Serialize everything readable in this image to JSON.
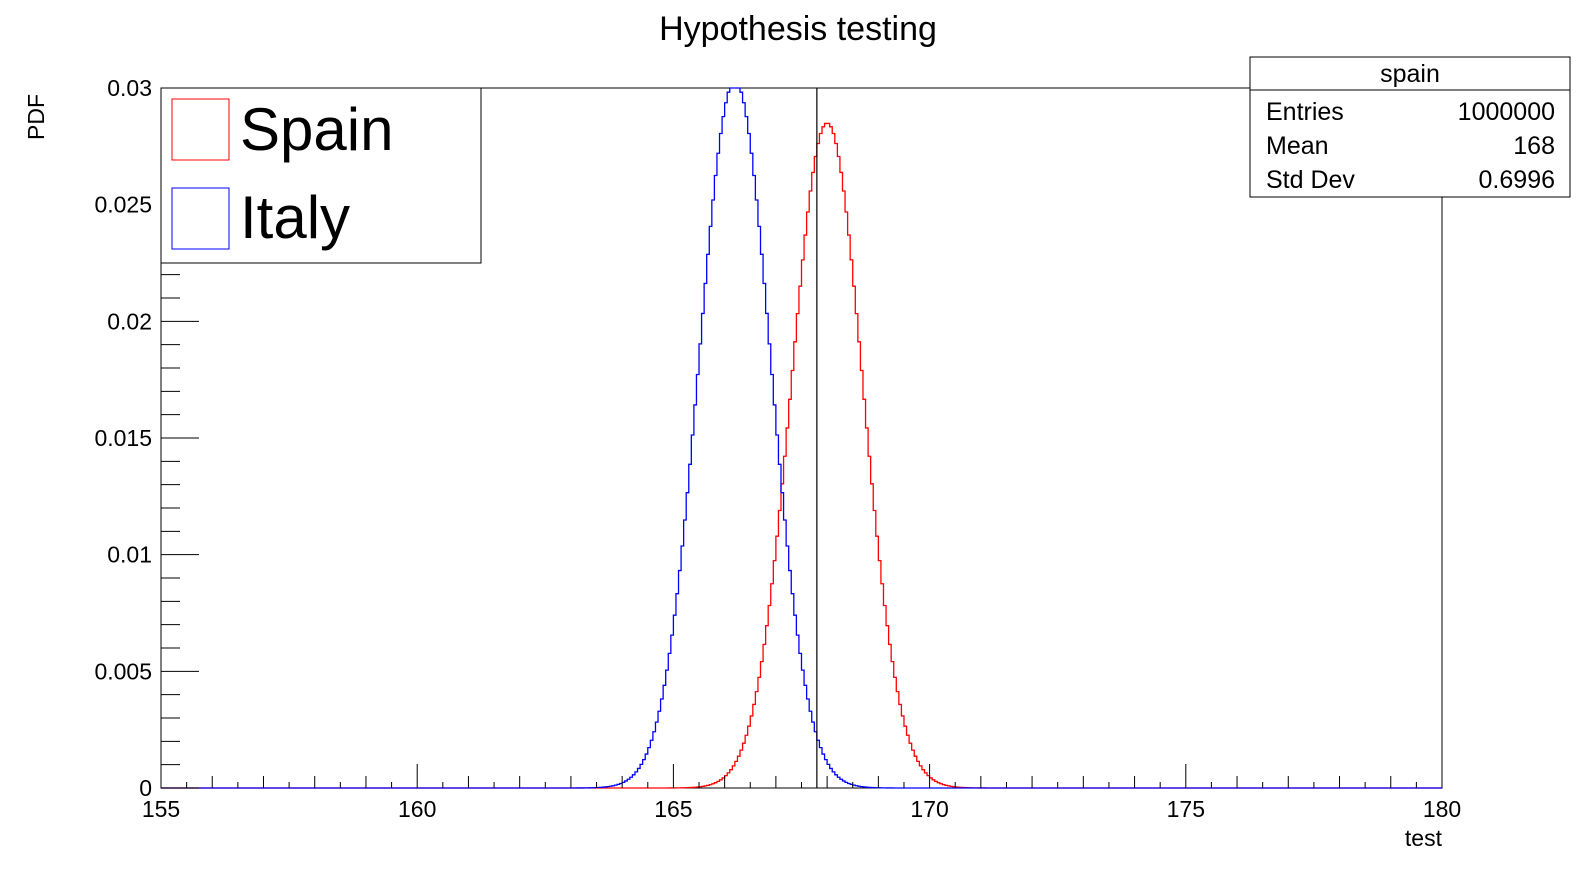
{
  "chart_data": {
    "type": "histogram",
    "title": "Hypothesis testing",
    "xlabel": "test",
    "ylabel": "PDF",
    "xlim": [
      155,
      180
    ],
    "ylim": [
      0,
      0.03
    ],
    "x_ticks": [
      "155",
      "160",
      "165",
      "170",
      "175",
      "180"
    ],
    "y_ticks": [
      "0",
      "0.005",
      "0.01",
      "0.015",
      "0.02",
      "0.025",
      "0.03"
    ],
    "critical_value": 167.8,
    "legend": {
      "position": "top-left",
      "entries": [
        {
          "label": "Spain",
          "color": "#ff0000"
        },
        {
          "label": "Italy",
          "color": "#0000ff"
        }
      ]
    },
    "series": [
      {
        "name": "Spain",
        "color": "#ff0000",
        "mean": 168.0,
        "std_dev": 0.6996,
        "peak": 0.0285
      },
      {
        "name": "Italy",
        "color": "#0000ff",
        "mean": 166.2,
        "std_dev": 0.7,
        "peak": 0.0303
      }
    ],
    "stats_box": {
      "title": "spain",
      "rows": [
        {
          "label": "Entries",
          "value": "1000000"
        },
        {
          "label": "Mean",
          "value": "168"
        },
        {
          "label": "Std Dev",
          "value": "0.6996"
        }
      ]
    },
    "grid": false
  },
  "colors": {
    "axis": "#000000",
    "frame": "#000000",
    "background": "#ffffff"
  }
}
